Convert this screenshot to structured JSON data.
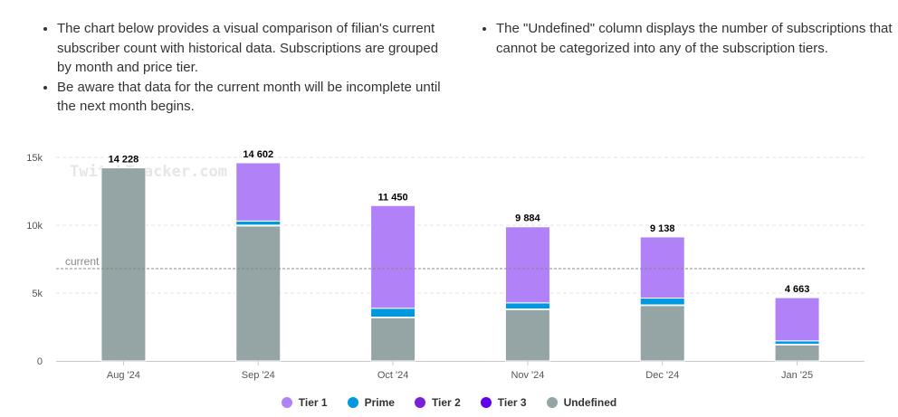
{
  "notes": {
    "left": [
      "The chart below provides a visual comparison of filian's current subscriber count with historical data. Subscriptions are grouped by month and price tier.",
      "Be aware that data for the current month will be incomplete until the next month begins."
    ],
    "right": [
      "The \"Undefined\" column displays the number of subscriptions that cannot be categorized into any of the subscription tiers."
    ]
  },
  "watermark": "TwitchTracker.com",
  "chart_data": {
    "type": "bar",
    "stacked": true,
    "categories": [
      "Aug '24",
      "Sep '24",
      "Oct '24",
      "Nov '24",
      "Dec '24",
      "Jan '25"
    ],
    "series": [
      {
        "name": "Undefined",
        "color": "#95a5a6",
        "values": [
          14228,
          9950,
          3200,
          3800,
          4100,
          1200
        ]
      },
      {
        "name": "Tier 3",
        "color": "#6200ea",
        "values": [
          0,
          30,
          10,
          10,
          10,
          10
        ]
      },
      {
        "name": "Tier 2",
        "color": "#7a1fd8",
        "values": [
          0,
          30,
          20,
          20,
          20,
          20
        ]
      },
      {
        "name": "Prime",
        "color": "#0099e0",
        "values": [
          0,
          300,
          650,
          450,
          500,
          250
        ]
      },
      {
        "name": "Tier 1",
        "color": "#b081f7",
        "values": [
          0,
          4292,
          7570,
          5604,
          4508,
          3183
        ]
      }
    ],
    "totals": [
      "14 228",
      "14 602",
      "11 450",
      "9 884",
      "9 138",
      "4 663"
    ],
    "yticks": [
      0,
      5000,
      10000,
      15000
    ],
    "ytick_labels": [
      "0",
      "5k",
      "10k",
      "15k"
    ],
    "ylim": [
      0,
      15000
    ],
    "reference_line": {
      "label": "current",
      "value": 6800
    },
    "legend": {
      "position": "bottom",
      "order": [
        "Tier 1",
        "Prime",
        "Tier 2",
        "Tier 3",
        "Undefined"
      ]
    },
    "grid": true
  }
}
